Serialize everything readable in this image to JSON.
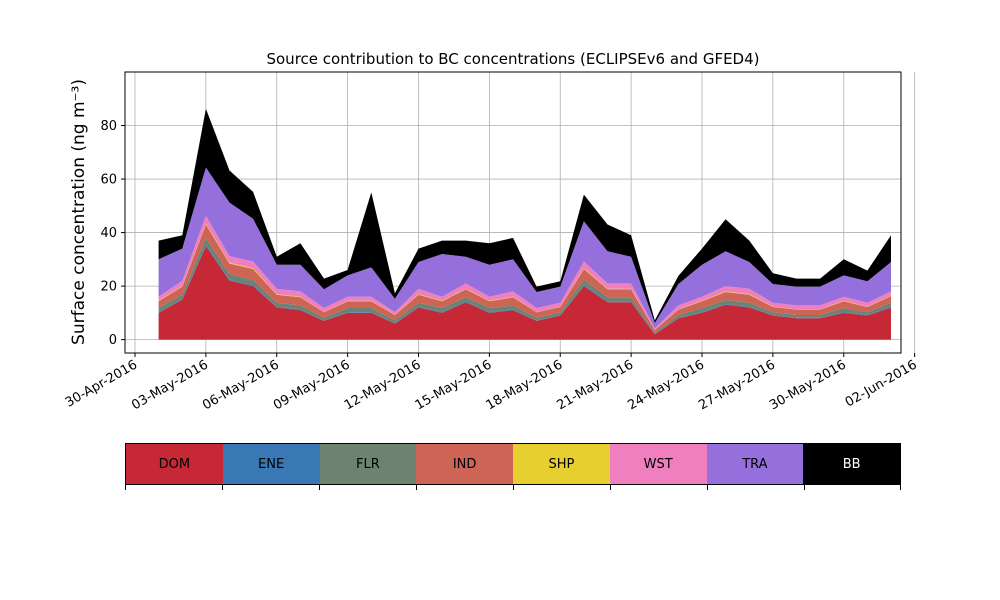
{
  "chart_data": {
    "type": "area",
    "stacked": true,
    "title": "Source contribution to BC concentrations (ECLIPSEv6 and GFED4)",
    "ylabel": "Surface concentration (ng m⁻³)",
    "xlabel": "",
    "ylim": [
      -5,
      100
    ],
    "xlim": [
      "2016-04-30",
      "2016-06-01"
    ],
    "yticks": [
      0,
      20,
      40,
      60,
      80
    ],
    "xticks": [
      "30-Apr-2016",
      "03-May-2016",
      "06-May-2016",
      "09-May-2016",
      "12-May-2016",
      "15-May-2016",
      "18-May-2016",
      "21-May-2016",
      "24-May-2016",
      "27-May-2016",
      "30-May-2016",
      "02-Jun-2016"
    ],
    "grid": true,
    "x": [
      "2016-05-01",
      "2016-05-02",
      "2016-05-03",
      "2016-05-04",
      "2016-05-05",
      "2016-05-06",
      "2016-05-07",
      "2016-05-08",
      "2016-05-09",
      "2016-05-10",
      "2016-05-11",
      "2016-05-12",
      "2016-05-13",
      "2016-05-14",
      "2016-05-15",
      "2016-05-16",
      "2016-05-17",
      "2016-05-18",
      "2016-05-19",
      "2016-05-20",
      "2016-05-21",
      "2016-05-22",
      "2016-05-23",
      "2016-05-24",
      "2016-05-25",
      "2016-05-26",
      "2016-05-27",
      "2016-05-28",
      "2016-05-29",
      "2016-05-30",
      "2016-05-31",
      "2016-06-01"
    ],
    "series": [
      {
        "name": "DOM",
        "color": "#c62836",
        "values": [
          10,
          15,
          35,
          22,
          20,
          12,
          11,
          7,
          10,
          10,
          6,
          12,
          10,
          14,
          10,
          11,
          7,
          9,
          20,
          14,
          14,
          2,
          8,
          10,
          13,
          12,
          9,
          8,
          8,
          10,
          9,
          12
        ]
      },
      {
        "name": "ENE",
        "color": "#3a78b5",
        "values": [
          0.3,
          0.3,
          0.5,
          0.4,
          0.4,
          0.3,
          0.3,
          0.2,
          0.3,
          0.3,
          0.2,
          0.3,
          0.3,
          0.3,
          0.3,
          0.3,
          0.2,
          0.2,
          0.4,
          0.3,
          0.3,
          0.1,
          0.2,
          0.3,
          0.3,
          0.3,
          0.2,
          0.2,
          0.2,
          0.3,
          0.2,
          0.3
        ]
      },
      {
        "name": "FLR",
        "color": "#6e8270",
        "values": [
          1.5,
          1.5,
          2.5,
          2,
          2,
          1.5,
          1.5,
          1,
          1.5,
          1.5,
          1,
          1.5,
          1.5,
          1.5,
          1.5,
          1.5,
          1,
          1,
          2,
          1.5,
          1.5,
          0.5,
          1,
          1.5,
          1.5,
          1.5,
          1,
          1,
          1,
          1.5,
          1,
          1.5
        ]
      },
      {
        "name": "IND",
        "color": "#cd6456",
        "values": [
          2.5,
          3,
          5,
          4,
          4,
          3,
          3,
          2,
          2.5,
          2.5,
          2,
          3,
          2.5,
          3,
          2.5,
          3,
          2,
          2,
          4,
          3,
          3,
          1,
          2,
          2.5,
          3,
          3,
          2,
          2,
          2,
          2.5,
          2,
          2.5
        ]
      },
      {
        "name": "SHP",
        "color": "#e8cf30",
        "values": [
          0.2,
          0.2,
          0.3,
          0.3,
          0.3,
          0.2,
          0.2,
          0.1,
          0.2,
          0.2,
          0.1,
          0.2,
          0.2,
          0.2,
          0.2,
          0.2,
          0.1,
          0.1,
          0.3,
          0.2,
          0.2,
          0.1,
          0.1,
          0.2,
          0.2,
          0.2,
          0.1,
          0.1,
          0.1,
          0.2,
          0.1,
          0.2
        ]
      },
      {
        "name": "WST",
        "color": "#f07fbf",
        "values": [
          1.5,
          2,
          3,
          2.5,
          2.5,
          2,
          2,
          1.5,
          1.5,
          1.5,
          1,
          2,
          1.5,
          2,
          1.5,
          2,
          1.5,
          1.5,
          2.5,
          2,
          2,
          0.5,
          1.5,
          1.5,
          2,
          2,
          1.5,
          1.5,
          1.5,
          1.5,
          1.5,
          1.5
        ]
      },
      {
        "name": "TRA",
        "color": "#9570dd",
        "values": [
          14,
          12,
          18,
          20,
          16,
          9,
          10,
          7,
          8,
          11,
          5,
          10,
          16,
          10,
          12,
          12,
          6,
          6,
          15,
          12,
          10,
          2,
          8,
          12,
          13,
          10,
          7,
          7,
          7,
          8,
          8,
          11
        ]
      },
      {
        "name": "BB",
        "color": "#000000",
        "values": [
          7,
          5,
          22,
          12,
          10,
          3,
          8,
          4,
          2,
          28,
          2,
          5,
          5,
          6,
          8,
          8,
          2,
          2,
          10,
          10,
          8,
          1,
          3,
          6,
          12,
          8,
          4,
          3,
          3,
          6,
          4,
          10
        ]
      }
    ],
    "legend": {
      "placement": "bottom-colorbar",
      "labels": [
        "DOM",
        "ENE",
        "FLR",
        "IND",
        "SHP",
        "WST",
        "TRA",
        "BB"
      ],
      "text_colors": [
        "#000000",
        "#000000",
        "#000000",
        "#000000",
        "#000000",
        "#000000",
        "#000000",
        "#ffffff"
      ]
    }
  }
}
